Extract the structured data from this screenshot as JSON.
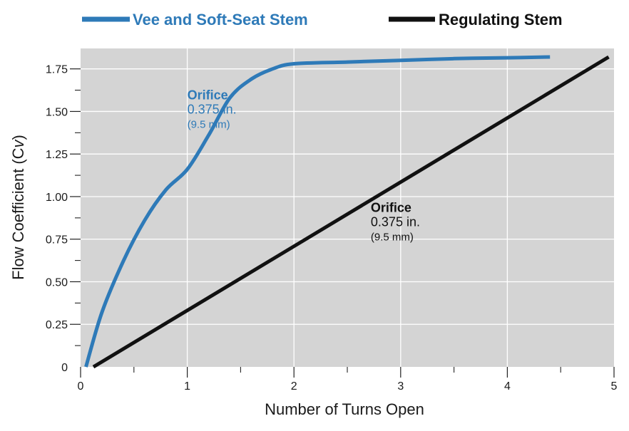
{
  "chart_data": {
    "type": "line",
    "xlabel": "Number of Turns Open",
    "ylabel_main": "Flow Coefficient (C",
    "ylabel_sub": "v",
    "ylabel_tail": ")",
    "xlim": [
      0,
      5
    ],
    "ylim": [
      0,
      1.87
    ],
    "x_ticks": [
      0,
      1,
      2,
      3,
      4,
      5
    ],
    "x_tick_labels": [
      "0",
      "1",
      "2",
      "3",
      "4",
      "5"
    ],
    "y_ticks": [
      0,
      0.25,
      0.5,
      0.75,
      1.0,
      1.25,
      1.5,
      1.75
    ],
    "y_tick_labels": [
      "0",
      "0.25",
      "0.50",
      "0.75",
      "1.00",
      "1.25",
      "1.50",
      "1.75"
    ],
    "grid": true,
    "legend_position": "top",
    "background": "#d4d4d4",
    "series": [
      {
        "name": "Vee and Soft-Seat Stem",
        "color": "#2e7ab8",
        "x": [
          0.05,
          0.2,
          0.4,
          0.6,
          0.8,
          1.0,
          1.2,
          1.4,
          1.6,
          1.8,
          2.0,
          2.5,
          3.0,
          3.5,
          4.0,
          4.4
        ],
        "y": [
          0.0,
          0.32,
          0.62,
          0.86,
          1.04,
          1.16,
          1.36,
          1.58,
          1.69,
          1.75,
          1.78,
          1.79,
          1.8,
          1.81,
          1.815,
          1.82
        ]
      },
      {
        "name": "Regulating Stem",
        "color": "#111111",
        "x": [
          0.12,
          4.95
        ],
        "y": [
          0.0,
          1.82
        ]
      }
    ],
    "annotations": [
      {
        "series": 0,
        "x": 1.0,
        "y": 1.57,
        "title": "Orifice",
        "value": "0.375 in.",
        "mm": "(9.5 mm)"
      },
      {
        "series": 1,
        "x": 2.72,
        "y": 0.91,
        "title": "Orifice",
        "value": "0.375 in.",
        "mm": "(9.5 mm)"
      }
    ]
  }
}
